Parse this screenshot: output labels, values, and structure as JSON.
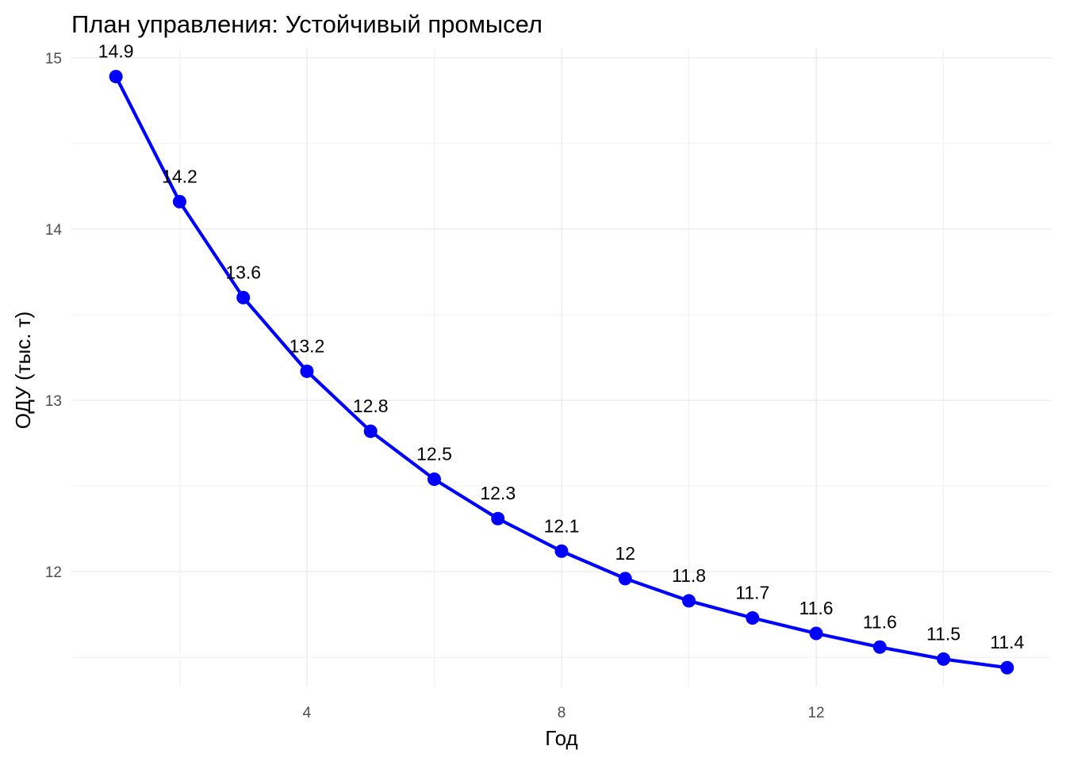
{
  "chart_data": {
    "type": "line",
    "title": "План управления: Устойчивый промысел",
    "xlabel": "Год",
    "ylabel": "ОДУ (тыс. т)",
    "x": [
      1,
      2,
      3,
      4,
      5,
      6,
      7,
      8,
      9,
      10,
      11,
      12,
      13,
      14,
      15
    ],
    "series": [
      {
        "values": [
          14.89,
          14.16,
          13.6,
          13.17,
          12.82,
          12.54,
          12.31,
          12.12,
          11.96,
          11.83,
          11.73,
          11.64,
          11.56,
          11.49,
          11.44
        ],
        "labels": [
          "14.9",
          "14.2",
          "13.6",
          "13.2",
          "12.8",
          "12.5",
          "12.3",
          "12.1",
          "12",
          "11.8",
          "11.7",
          "11.6",
          "11.6",
          "11.5",
          "11.4"
        ],
        "color": "#0000ff"
      }
    ],
    "xlim": [
      0.3,
      15.7
    ],
    "ylim": [
      11.33,
      15.05
    ],
    "x_ticks": [
      4,
      8,
      12
    ],
    "x_tick_labels": [
      "4",
      "8",
      "12"
    ],
    "y_ticks": [
      12,
      13,
      14,
      15
    ],
    "y_tick_labels": [
      "12",
      "13",
      "14",
      "15"
    ],
    "grid": true,
    "legend": "none"
  }
}
